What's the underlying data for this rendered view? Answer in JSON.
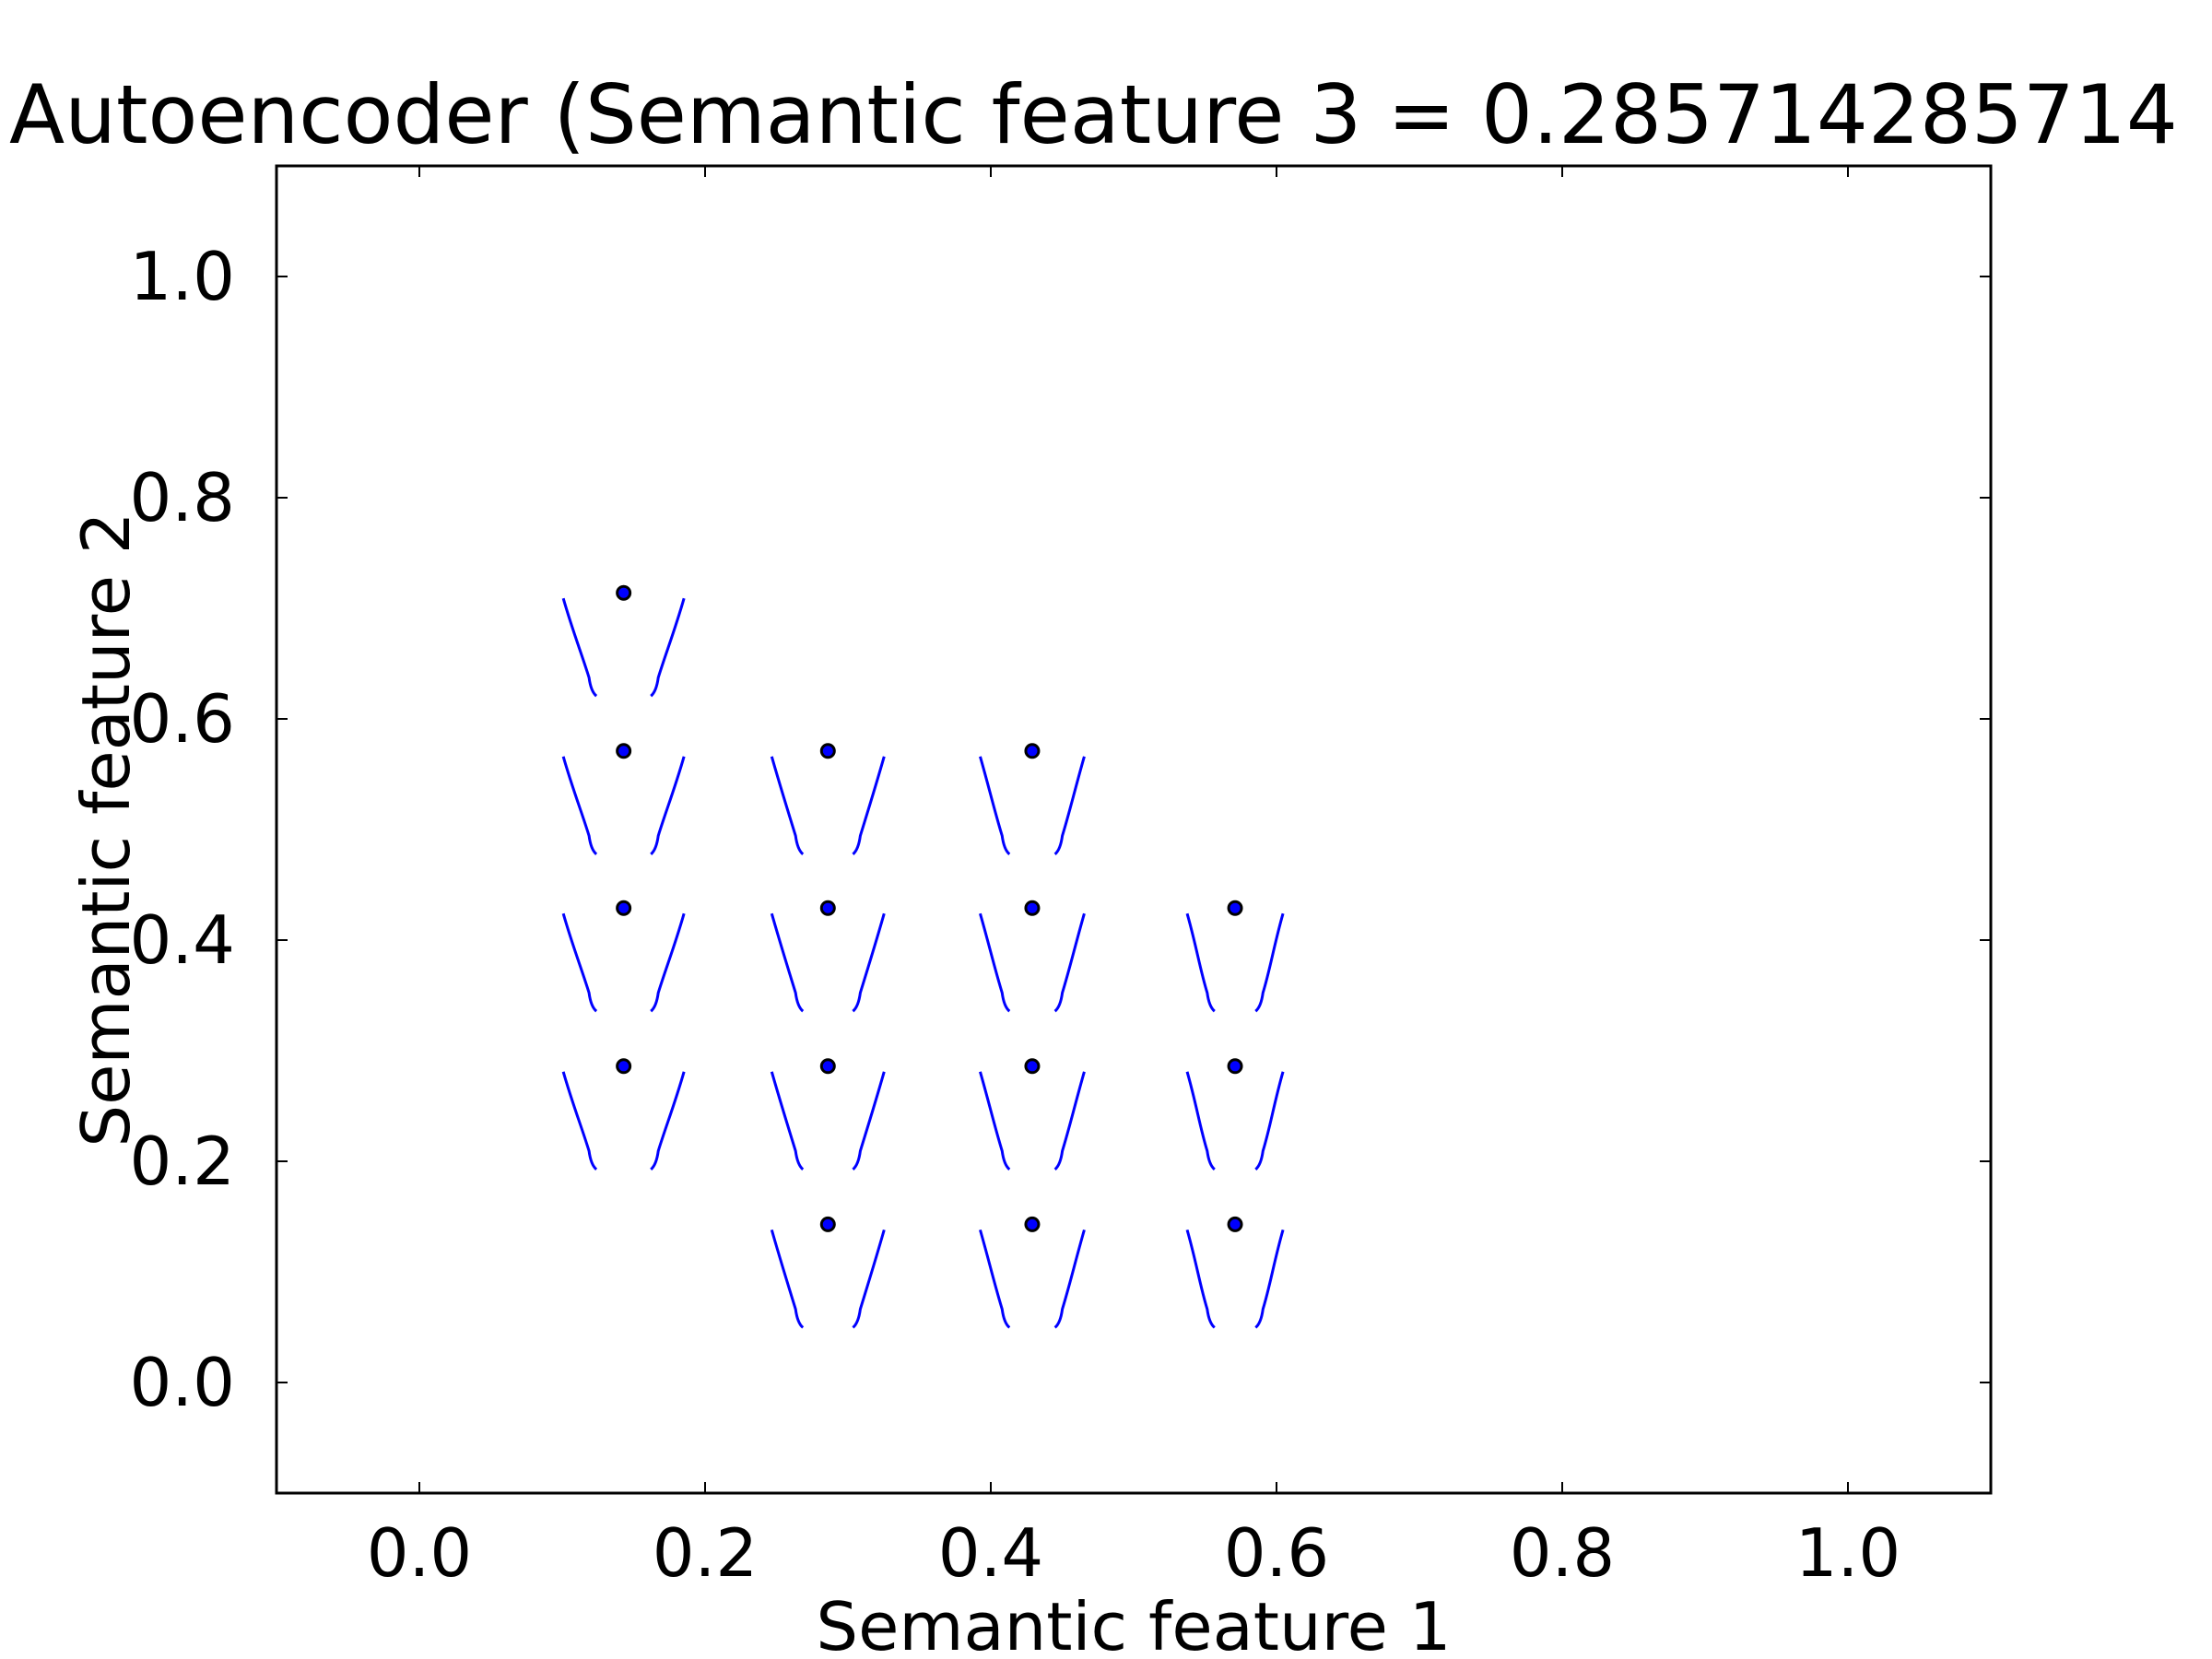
{
  "chart_data": {
    "type": "scatter",
    "title": "Autoencoder (Semantic feature 3 = 0.285714285714",
    "xlabel": "Semantic feature 1",
    "ylabel": "Semantic feature 2",
    "xlim": [
      -0.1,
      1.1
    ],
    "ylim": [
      -0.1,
      1.1
    ],
    "x_ticks": [
      "0.0",
      "0.2",
      "0.4",
      "0.6",
      "0.8",
      "1.0"
    ],
    "y_ticks": [
      "0.0",
      "0.2",
      "0.4",
      "0.6",
      "0.8",
      "1.0"
    ],
    "grid": false,
    "legend": "none",
    "colors": {
      "points": "#000000",
      "point_fill": "#0000ff",
      "contours": "#0000ff"
    },
    "series": [
      {
        "values": [
          [
            0.143,
            0.714
          ],
          [
            0.143,
            0.571
          ],
          [
            0.286,
            0.571
          ],
          [
            0.429,
            0.571
          ],
          [
            0.143,
            0.429
          ],
          [
            0.286,
            0.429
          ],
          [
            0.429,
            0.429
          ],
          [
            0.571,
            0.429
          ],
          [
            0.143,
            0.286
          ],
          [
            0.286,
            0.286
          ],
          [
            0.429,
            0.286
          ],
          [
            0.571,
            0.286
          ],
          [
            0.286,
            0.143
          ],
          [
            0.429,
            0.143
          ],
          [
            0.571,
            0.143
          ]
        ]
      }
    ]
  }
}
